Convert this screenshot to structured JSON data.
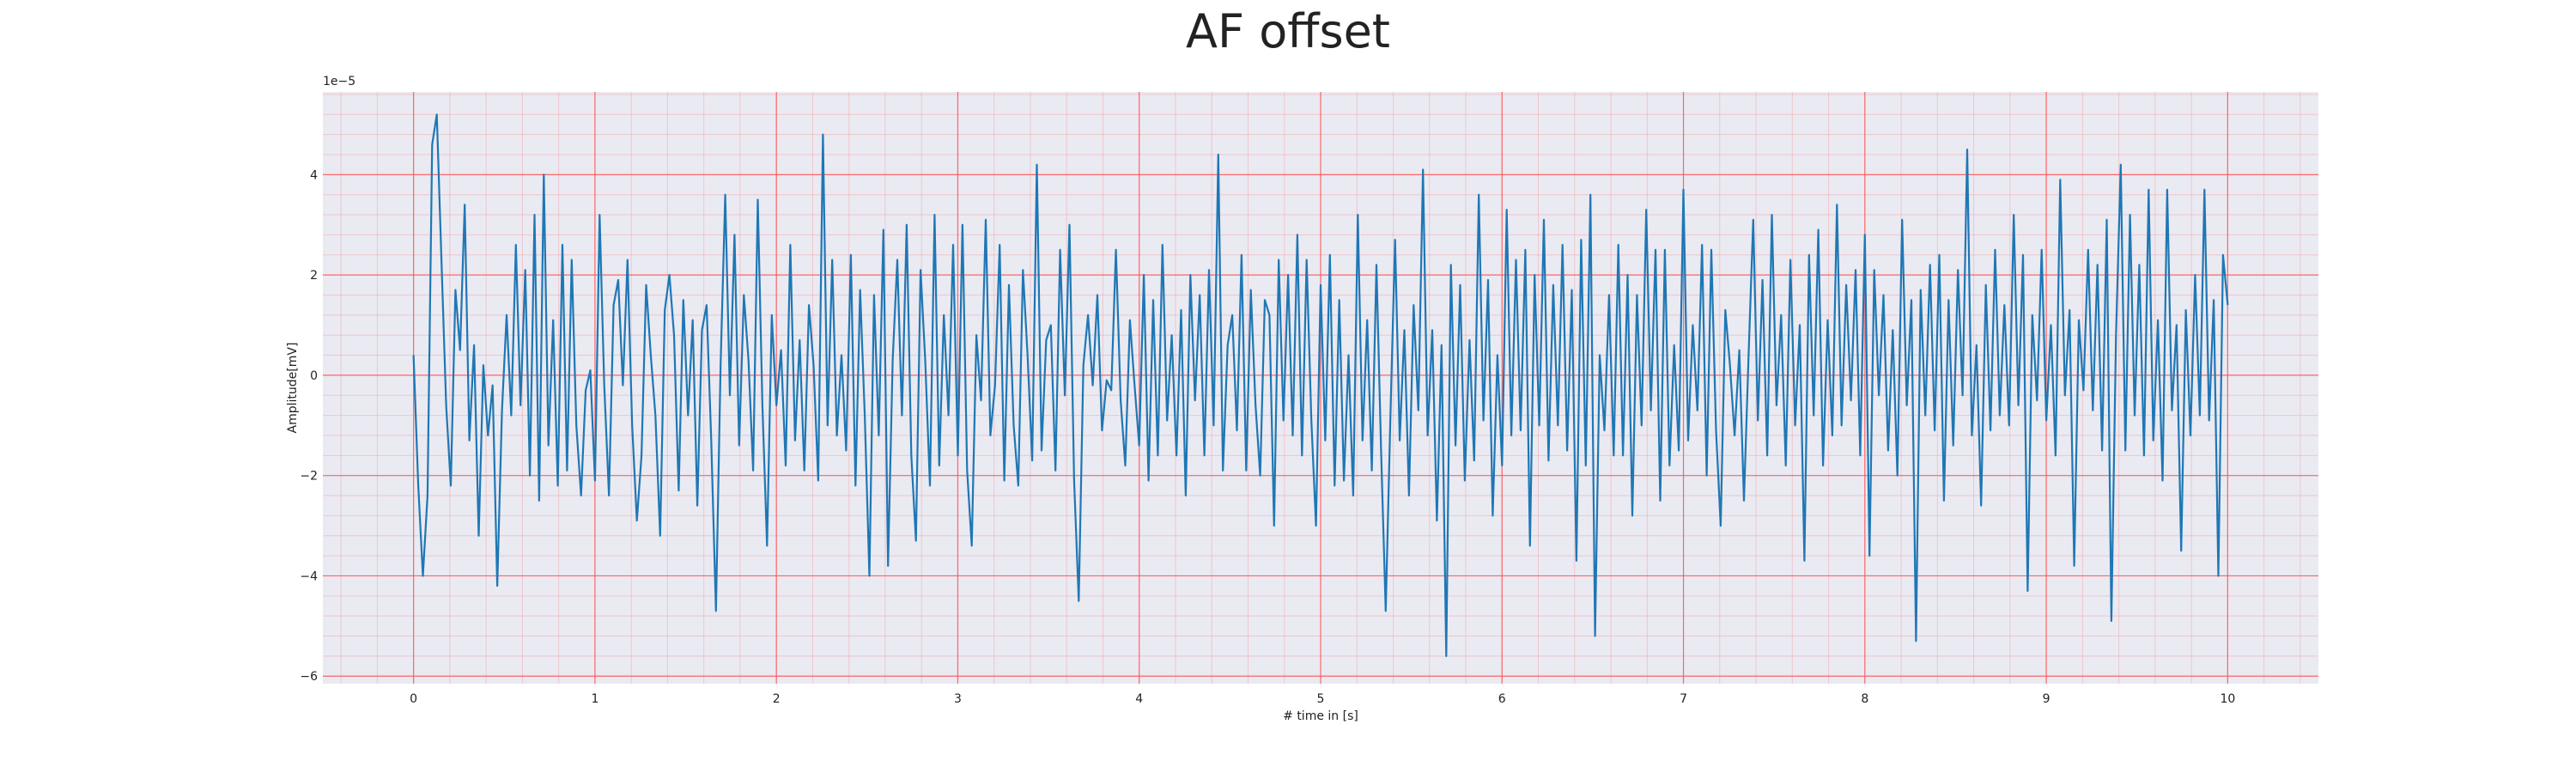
{
  "chart_data": {
    "type": "line",
    "title": "AF offset",
    "xlabel": "# time in [s]",
    "ylabel": "Amplitude[mV]",
    "y_scale_label": "1e−5",
    "xlim": [
      -0.5,
      10.5
    ],
    "ylim": [
      -6.15,
      5.65
    ],
    "xticks": [
      0,
      1,
      2,
      3,
      4,
      5,
      6,
      7,
      8,
      9,
      10
    ],
    "yticks": [
      -6,
      -4,
      -2,
      0,
      2,
      4
    ],
    "ytick_labels": [
      "−6",
      "−4",
      "−2",
      "0",
      "2",
      "4"
    ],
    "grid": true,
    "minor_grid": true,
    "background_color": "#eaeaf2",
    "grid_color": "#ff4d4d",
    "series": [
      {
        "color": "#1f77b4",
        "x_start": 0,
        "x_end": 10,
        "y_unit_scale": "1e-5",
        "y": [
          0.4,
          -2.2,
          -4.0,
          -2.4,
          4.6,
          5.2,
          2.3,
          -0.6,
          -2.2,
          1.7,
          0.5,
          3.4,
          -1.3,
          0.6,
          -3.2,
          0.2,
          -1.2,
          -0.2,
          -4.2,
          -0.7,
          1.2,
          -0.8,
          2.6,
          -0.6,
          2.1,
          -2.0,
          3.2,
          -2.5,
          4.0,
          -1.4,
          1.1,
          -2.2,
          2.6,
          -1.9,
          2.3,
          -1.0,
          -2.4,
          -0.3,
          0.1,
          -2.1,
          3.2,
          -0.2,
          -2.4,
          1.4,
          1.9,
          -0.2,
          2.3,
          -1.0,
          -2.9,
          -1.6,
          1.8,
          0.4,
          -0.8,
          -3.2,
          1.3,
          2.0,
          0.8,
          -2.3,
          1.5,
          -0.8,
          1.1,
          -2.6,
          0.9,
          1.4,
          -1.3,
          -4.7,
          0.2,
          3.6,
          -0.4,
          2.8,
          -1.4,
          1.6,
          0.3,
          -1.9,
          3.5,
          -0.6,
          -3.4,
          1.2,
          -0.6,
          0.5,
          -1.8,
          2.6,
          -1.3,
          0.7,
          -1.9,
          1.4,
          0.2,
          -2.1,
          4.8,
          -1.0,
          2.3,
          -1.2,
          0.4,
          -1.5,
          2.4,
          -2.2,
          1.7,
          -0.8,
          -4.0,
          1.6,
          -1.2,
          2.9,
          -3.8,
          0.3,
          2.3,
          -0.8,
          3.0,
          -1.6,
          -3.3,
          2.1,
          0.3,
          -2.2,
          3.2,
          -1.8,
          1.2,
          -0.8,
          2.6,
          -1.6,
          3.0,
          -1.9,
          -3.4,
          0.8,
          -0.5,
          3.1,
          -1.2,
          -0.2,
          2.6,
          -2.1,
          1.8,
          -1.0,
          -2.2,
          2.1,
          0.4,
          -1.7,
          4.2,
          -1.5,
          0.7,
          1.0,
          -1.9,
          2.5,
          -0.4,
          3.0,
          -2.1,
          -4.5,
          0.2,
          1.2,
          -0.2,
          1.6,
          -1.1,
          -0.1,
          -0.3,
          2.5,
          -0.5,
          -1.8,
          1.1,
          -0.2,
          -1.4,
          2.0,
          -2.1,
          1.5,
          -1.6,
          2.6,
          -0.9,
          0.8,
          -1.6,
          1.3,
          -2.4,
          2.0,
          -0.5,
          1.6,
          -1.6,
          2.1,
          -1.0,
          4.4,
          -1.9,
          0.6,
          1.2,
          -1.1,
          2.4,
          -1.9,
          1.7,
          -0.6,
          -2.0,
          1.5,
          1.2,
          -3.0,
          2.3,
          -0.9,
          2.0,
          -1.2,
          2.8,
          -1.6,
          2.3,
          -0.9,
          -3.0,
          1.8,
          -1.3,
          2.4,
          -2.2,
          1.5,
          -2.1,
          0.4,
          -2.4,
          3.2,
          -1.3,
          1.1,
          -1.9,
          2.2,
          -1.5,
          -4.7,
          -0.8,
          2.7,
          -1.3,
          0.9,
          -2.4,
          1.4,
          -0.7,
          4.1,
          -1.2,
          0.9,
          -2.9,
          0.6,
          -5.6,
          2.2,
          -1.4,
          1.8,
          -2.1,
          0.7,
          -1.7,
          3.6,
          -0.9,
          1.9,
          -2.8,
          0.4,
          -1.8,
          3.3,
          -1.2,
          2.3,
          -1.1,
          2.5,
          -3.4,
          2.0,
          -1.0,
          3.1,
          -1.7,
          1.8,
          -1.0,
          2.6,
          -1.5,
          1.7,
          -3.7,
          2.7,
          -1.8,
          3.6,
          -5.2,
          0.4,
          -1.1,
          1.6,
          -1.6,
          2.6,
          -1.6,
          2.0,
          -2.8,
          1.6,
          -1.0,
          3.3,
          -0.7,
          2.5,
          -2.5,
          2.5,
          -1.8,
          0.6,
          -1.5,
          3.7,
          -1.3,
          1.0,
          -0.7,
          2.6,
          -2.0,
          2.5,
          -1.1,
          -3.0,
          1.3,
          0.2,
          -1.2,
          0.5,
          -2.5,
          0.4,
          3.1,
          -0.9,
          1.9,
          -1.6,
          3.2,
          -0.6,
          1.2,
          -1.8,
          2.3,
          -1.0,
          1.0,
          -3.7,
          2.4,
          -0.8,
          2.9,
          -1.8,
          1.1,
          -1.2,
          3.4,
          -1.0,
          1.8,
          -0.5,
          2.1,
          -1.6,
          2.8,
          -3.6,
          2.1,
          -0.4,
          1.6,
          -1.5,
          0.9,
          -2.0,
          3.1,
          -0.6,
          1.5,
          -5.3,
          1.7,
          -0.8,
          2.2,
          -1.1,
          2.4,
          -2.5,
          1.5,
          -1.4,
          2.1,
          -0.4,
          4.5,
          -1.2,
          0.6,
          -2.6,
          1.8,
          -1.1,
          2.5,
          -0.8,
          1.4,
          -1.0,
          3.2,
          -0.6,
          2.4,
          -4.3,
          1.2,
          -0.5,
          2.5,
          -0.9,
          1.0,
          -1.6,
          3.9,
          -0.4,
          1.3,
          -3.8,
          1.1,
          -0.3,
          2.5,
          -0.7,
          2.2,
          -1.5,
          3.1,
          -4.9,
          0.8,
          4.2,
          -1.5,
          3.2,
          -0.8,
          2.2,
          -1.6,
          3.7,
          -1.3,
          1.1,
          -2.1,
          3.7,
          -0.7,
          1.0,
          -3.5,
          1.3,
          -1.2,
          2.0,
          -0.8,
          3.7,
          -0.9,
          1.5,
          -4.0,
          2.4,
          1.4
        ]
      }
    ]
  }
}
